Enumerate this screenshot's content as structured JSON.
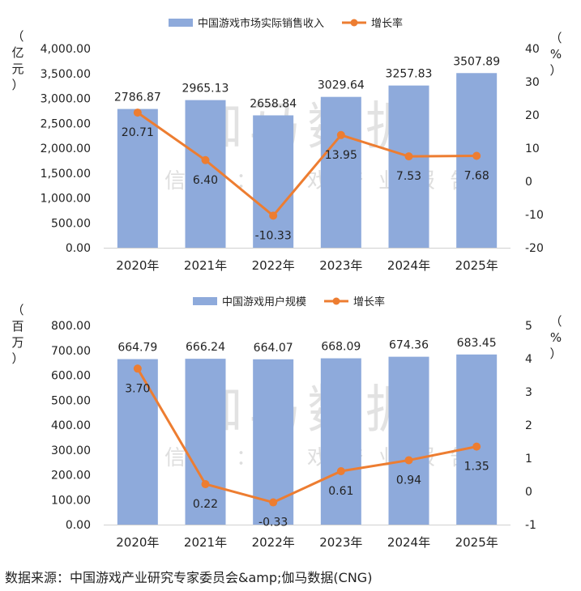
{
  "chart_data": [
    {
      "type": "bar",
      "categories": [
        "2020年",
        "2021年",
        "2022年",
        "2023年",
        "2024年",
        "2025年"
      ],
      "series": [
        {
          "name": "中国游戏市场实际销售收入",
          "type": "bar",
          "values": [
            2786.87,
            2965.13,
            2658.84,
            3029.64,
            3257.83,
            3507.89
          ],
          "labels": [
            "2786.87",
            "2965.13",
            "2658.84",
            "3029.64",
            "3257.83",
            "3507.89"
          ]
        },
        {
          "name": "增长率",
          "type": "line",
          "axis": "right",
          "values": [
            20.71,
            6.4,
            -10.33,
            13.95,
            7.53,
            7.68
          ],
          "labels": [
            "20.71",
            "6.40",
            "-10.33",
            "13.95",
            "7.53",
            "7.68"
          ]
        }
      ],
      "ylabel": "（亿元）",
      "y2label": "（%）",
      "ylim": [
        0,
        4000
      ],
      "y2lim": [
        -20,
        40
      ],
      "yticks": [
        "0.00",
        "500.00",
        "1,000.00",
        "1,500.00",
        "2,000.00",
        "2,500.00",
        "3,000.00",
        "3,500.00",
        "4,000.00"
      ],
      "y2ticks": [
        "-20",
        "-10",
        "0",
        "10",
        "20",
        "30",
        "40"
      ],
      "watermark": {
        "title": "伽马数据",
        "subtitle": "微信号：游戏产业报告"
      },
      "legend_position": "top"
    },
    {
      "type": "bar",
      "categories": [
        "2020年",
        "2021年",
        "2022年",
        "2023年",
        "2024年",
        "2025年"
      ],
      "series": [
        {
          "name": "中国游戏用户规模",
          "type": "bar",
          "values": [
            664.79,
            666.24,
            664.07,
            668.09,
            674.36,
            683.45
          ],
          "labels": [
            "664.79",
            "666.24",
            "664.07",
            "668.09",
            "674.36",
            "683.45"
          ]
        },
        {
          "name": "增长率",
          "type": "line",
          "axis": "right",
          "values": [
            3.7,
            0.22,
            -0.33,
            0.61,
            0.94,
            1.35
          ],
          "labels": [
            "3.70",
            "0.22",
            "-0.33",
            "0.61",
            "0.94",
            "1.35"
          ]
        }
      ],
      "ylabel": "（百万）",
      "y2label": "（%）",
      "ylim": [
        0,
        800
      ],
      "y2lim": [
        -1,
        5
      ],
      "yticks": [
        "0.00",
        "100.00",
        "200.00",
        "300.00",
        "400.00",
        "500.00",
        "600.00",
        "700.00",
        "800.00"
      ],
      "y2ticks": [
        "-1",
        "0",
        "1",
        "2",
        "3",
        "4",
        "5"
      ],
      "watermark": {
        "title": "伽马数据",
        "subtitle": "微信号：游戏产业报告"
      },
      "legend_position": "top"
    }
  ],
  "colors": {
    "bar": "#8eaadb",
    "line": "#ed7d31",
    "watermark": "#d9d9d9"
  },
  "source": "数据来源：中国游戏产业研究专家委员会&amp;伽马数据(CNG)"
}
